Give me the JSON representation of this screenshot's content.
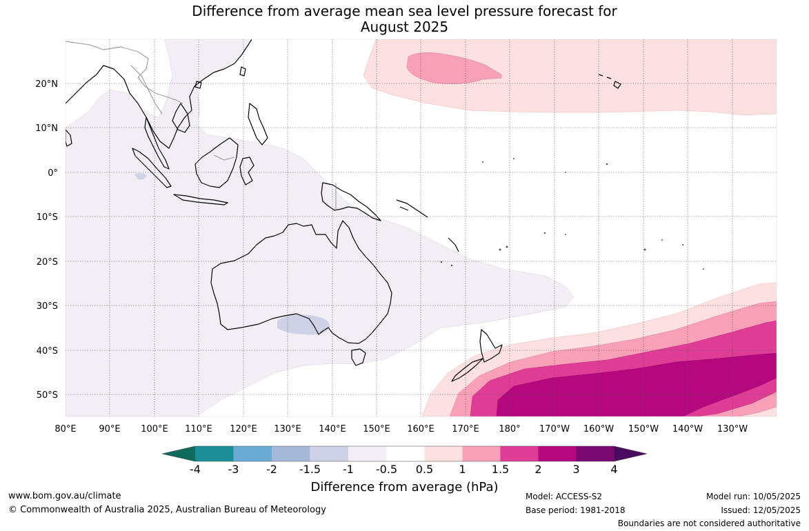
{
  "title_line1": "Difference from average mean sea level pressure forecast for",
  "title_line2": "August 2025",
  "lat_labels": [
    "20°N",
    "10°N",
    "0°",
    "10°S",
    "20°S",
    "30°S",
    "40°S",
    "50°S"
  ],
  "lon_labels": [
    "80°E",
    "90°E",
    "100°E",
    "110°E",
    "120°E",
    "130°E",
    "140°E",
    "150°E",
    "160°E",
    "170°E",
    "180°",
    "170°W",
    "160°W",
    "150°W",
    "140°W",
    "130°W"
  ],
  "colorbar": {
    "title": "Difference from average (hPa)",
    "ticks": [
      "-4",
      "-3",
      "-2",
      "-1.5",
      "-1",
      "-0.5",
      "0.5",
      "1",
      "1.5",
      "2",
      "3",
      "4"
    ],
    "colors": {
      "lt_-4": "#0f6b5e",
      "-4_-3": "#1a8f95",
      "-3_-2": "#6aaad4",
      "-2_-1.5": "#a7b9da",
      "-1.5_-1": "#cfd2e6",
      "-1_-0.5": "#f3eef6",
      "-0.5_0.5": "#ffffff",
      "0.5_1": "#fde0e0",
      "1_1.5": "#f8a0b8",
      "1.5_2": "#df3c95",
      "2_3": "#b5087e",
      "3_4": "#7a0a72",
      "gt_4": "#4a0a5e"
    }
  },
  "footer": {
    "website": "www.bom.gov.au/climate",
    "copyright": "© Commonwealth of Australia 2025, Australian Bureau of Meteorology",
    "model": "Model: ACCESS-S2",
    "base_period": "Base period: 1981-2018",
    "model_run": "Model run: 10/05/2025",
    "issued": "Issued: 12/05/2025",
    "disclaimer": "Boundaries are not considered authoritative"
  }
}
